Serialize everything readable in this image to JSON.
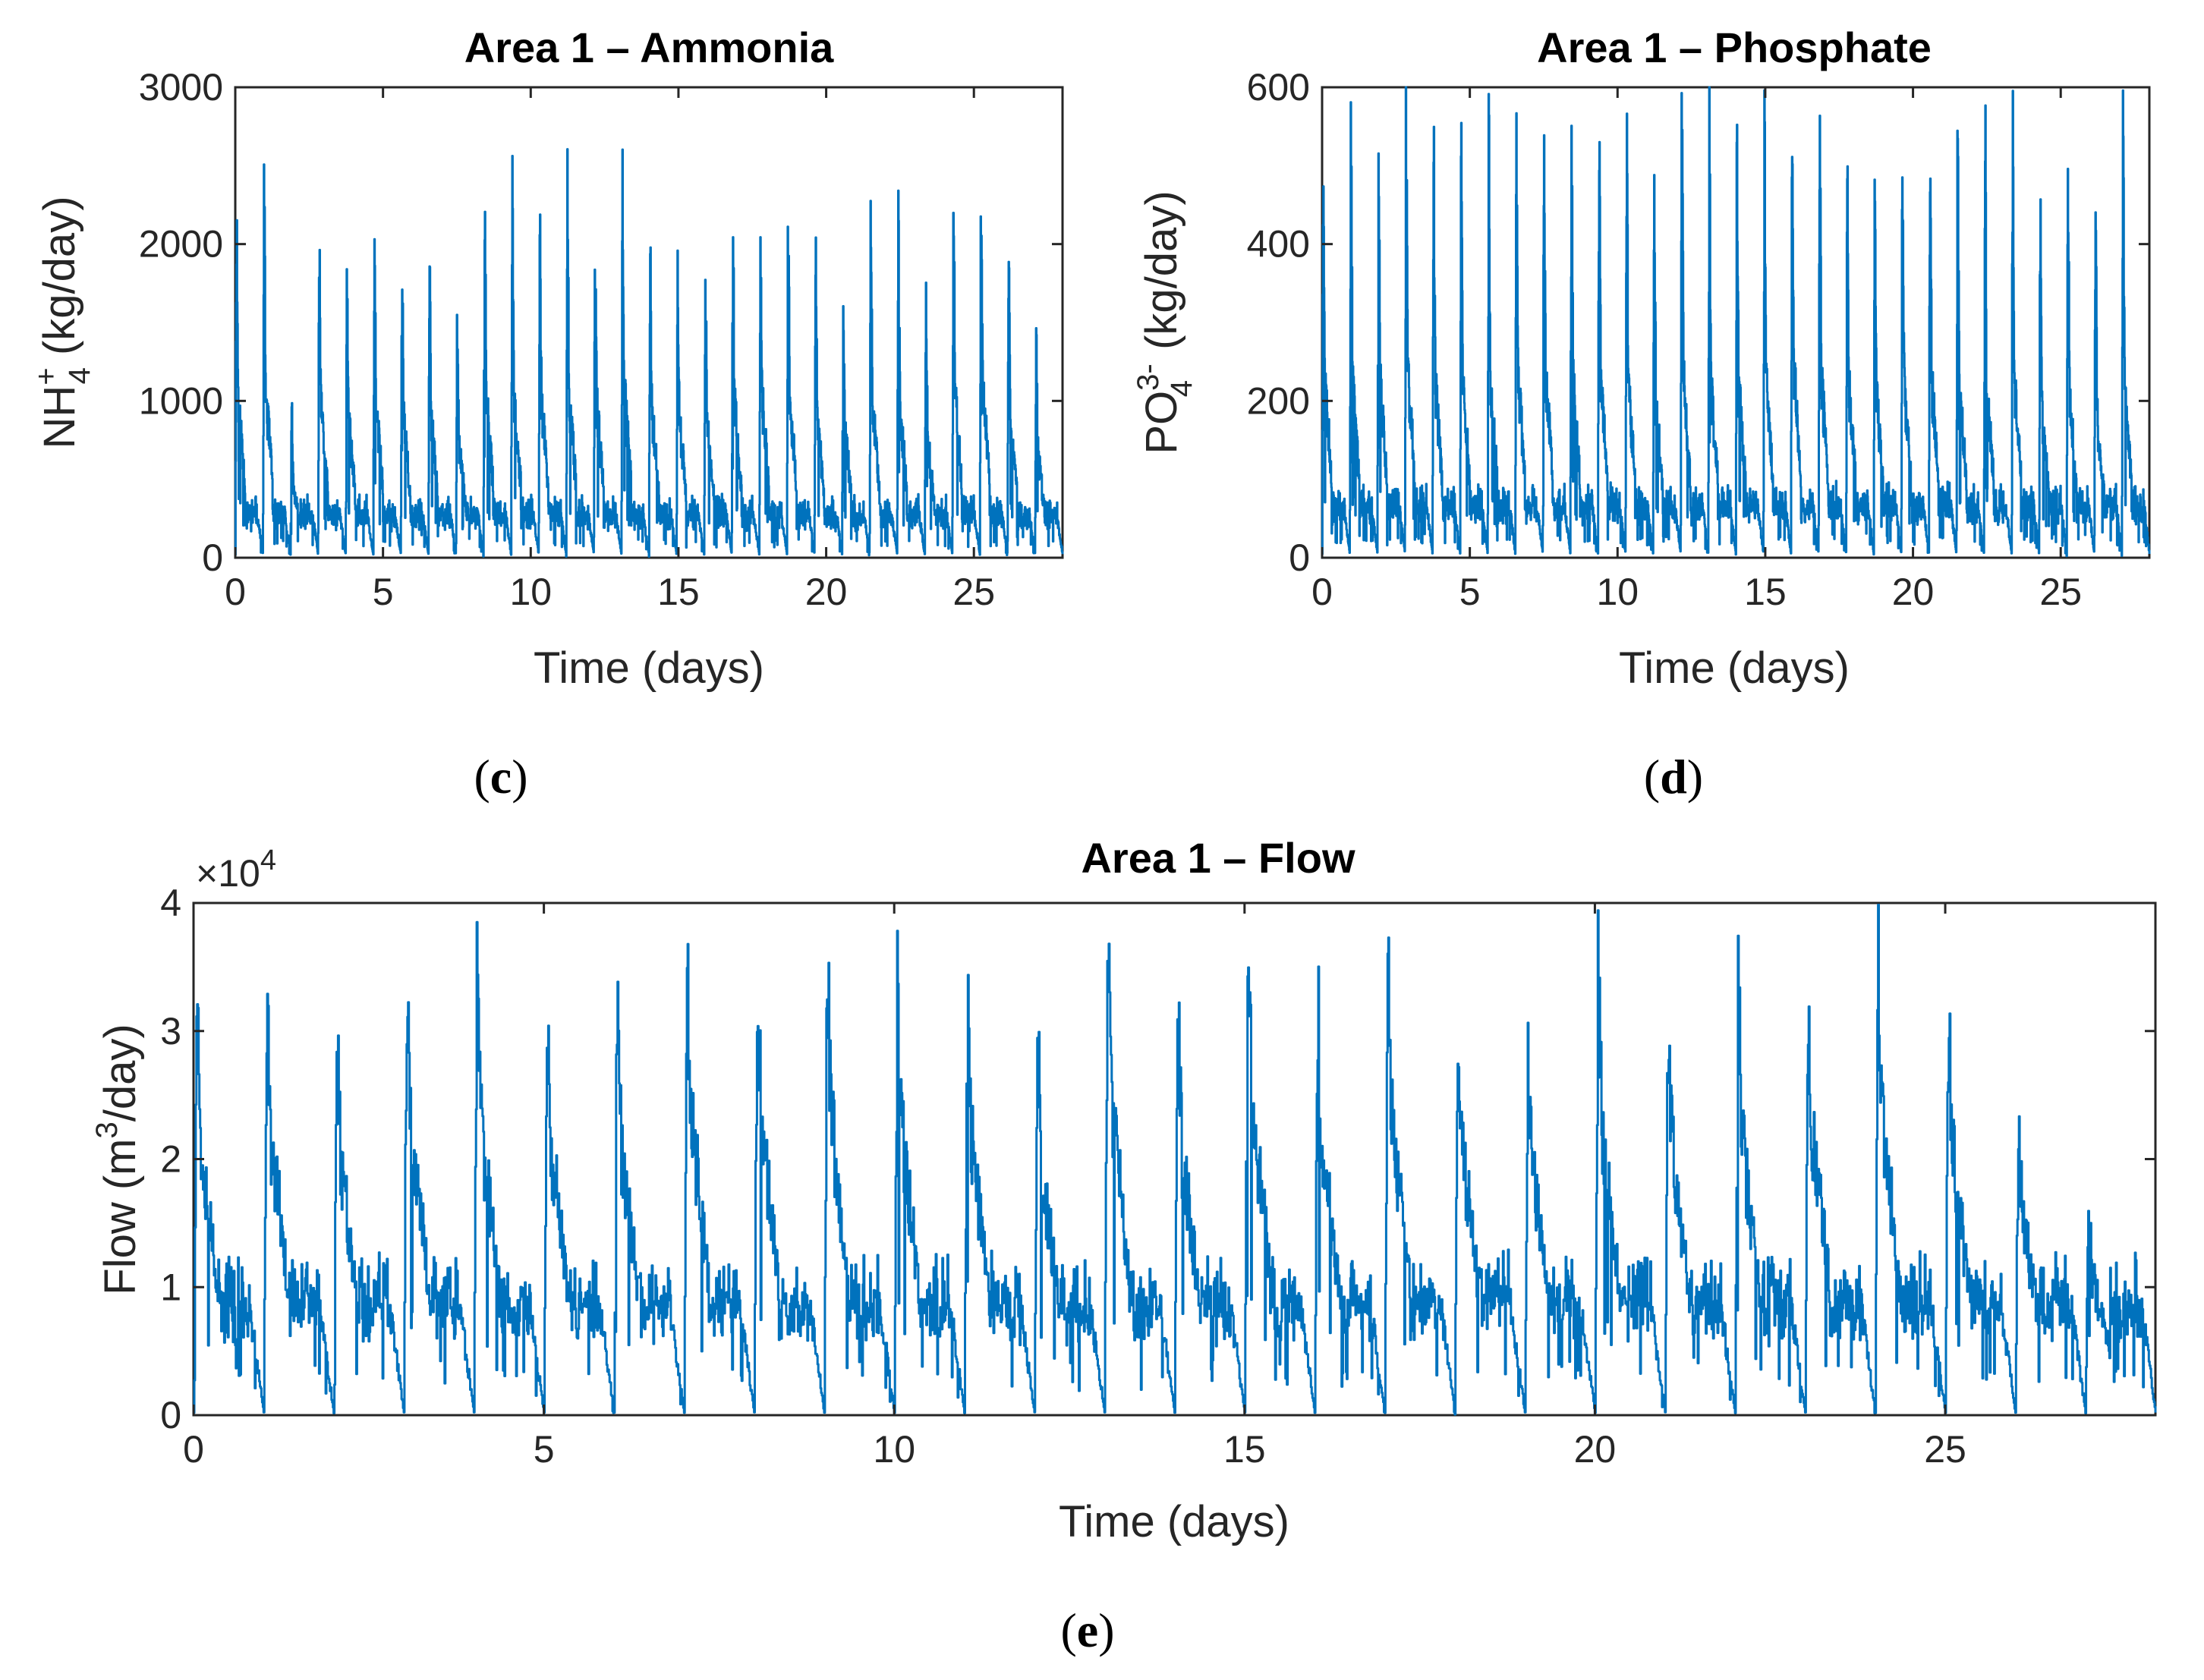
{
  "colors": {
    "series": "#0072BD",
    "axis": "#262626",
    "background": "#ffffff"
  },
  "chart_data": [
    {
      "id": "ammonia",
      "type": "line",
      "title": "Area 1 – Ammonia",
      "xlabel": "Time (days)",
      "ylabel_main": "NH",
      "ylabel_sub": "4",
      "ylabel_sup": "+",
      "ylabel_rest": " (kg/day)",
      "xlim": [
        0,
        28
      ],
      "ylim": [
        0,
        3000
      ],
      "xticks": [
        0,
        5,
        10,
        15,
        20,
        25
      ],
      "yticks": [
        0,
        1000,
        2000,
        3000
      ],
      "ytick_labels": [
        "0",
        "1000",
        "2000",
        "3000"
      ],
      "panel_label": "c",
      "grid": false,
      "generator": {
        "peaks": [
          2280,
          2330,
          1000,
          2150,
          1960,
          2160,
          1940,
          1930,
          1640,
          2260,
          2280,
          2220,
          2300,
          2160,
          2380,
          2100,
          1970,
          1960,
          2160,
          2240,
          2290,
          1970,
          1850,
          2220,
          2120,
          1700,
          2270,
          2420,
          1960,
          1480
        ],
        "secondary": 0.45,
        "baseline": 250,
        "trough": 20,
        "seed": 11
      }
    },
    {
      "id": "phosphate",
      "type": "line",
      "title": "Area 1 – Phosphate",
      "xlabel": "Time (days)",
      "ylabel_main": "PO",
      "ylabel_sub": "4",
      "ylabel_sup": "3-",
      "ylabel_rest": " (kg/day)",
      "xlim": [
        0,
        28
      ],
      "ylim": [
        0,
        600
      ],
      "xticks": [
        0,
        5,
        10,
        15,
        20,
        25
      ],
      "yticks": [
        0,
        200,
        400,
        600
      ],
      "ytick_labels": [
        "0",
        "200",
        "400",
        "600"
      ],
      "panel_label": "d",
      "grid": false,
      "generator": {
        "peaks": [
          555,
          550,
          555,
          598,
          555,
          560,
          555,
          580,
          585,
          545,
          560,
          540,
          490,
          575,
          535,
          545,
          555,
          600,
          570,
          540,
          510,
          560,
          555,
          570,
          555,
          570,
          455,
          525,
          445,
          530
        ],
        "secondary": 0.4,
        "baseline": 60,
        "trough": 5,
        "seed": 23
      }
    },
    {
      "id": "flow",
      "type": "line",
      "title": "Area 1 – Flow",
      "xlabel": "Time (days)",
      "ylabel_main": "Flow (m",
      "ylabel_sup": "3",
      "ylabel_rest": "/day)",
      "xlim": [
        0,
        28
      ],
      "ylim": [
        0,
        40000
      ],
      "xticks": [
        0,
        5,
        10,
        15,
        20,
        25
      ],
      "yticks": [
        0,
        10000,
        20000,
        30000,
        40000
      ],
      "ytick_labels": [
        "0",
        "1",
        "2",
        "3",
        "4"
      ],
      "exponent_base": "×10",
      "exponent_power": "4",
      "panel_label": "e",
      "grid": false,
      "generator": {
        "peaks": [
          33500,
          33800,
          30000,
          35300,
          34300,
          32500,
          32500,
          35500,
          35300,
          35200,
          34000,
          32600,
          30000,
          37300,
          31500,
          38200,
          32600,
          36000,
          32600,
          29600,
          33800,
          31700,
          32600,
          33700,
          35600,
          31500,
          23700,
          16300
        ],
        "secondary": 0.65,
        "baseline": 8000,
        "trough": 200,
        "seed": 37
      }
    }
  ]
}
